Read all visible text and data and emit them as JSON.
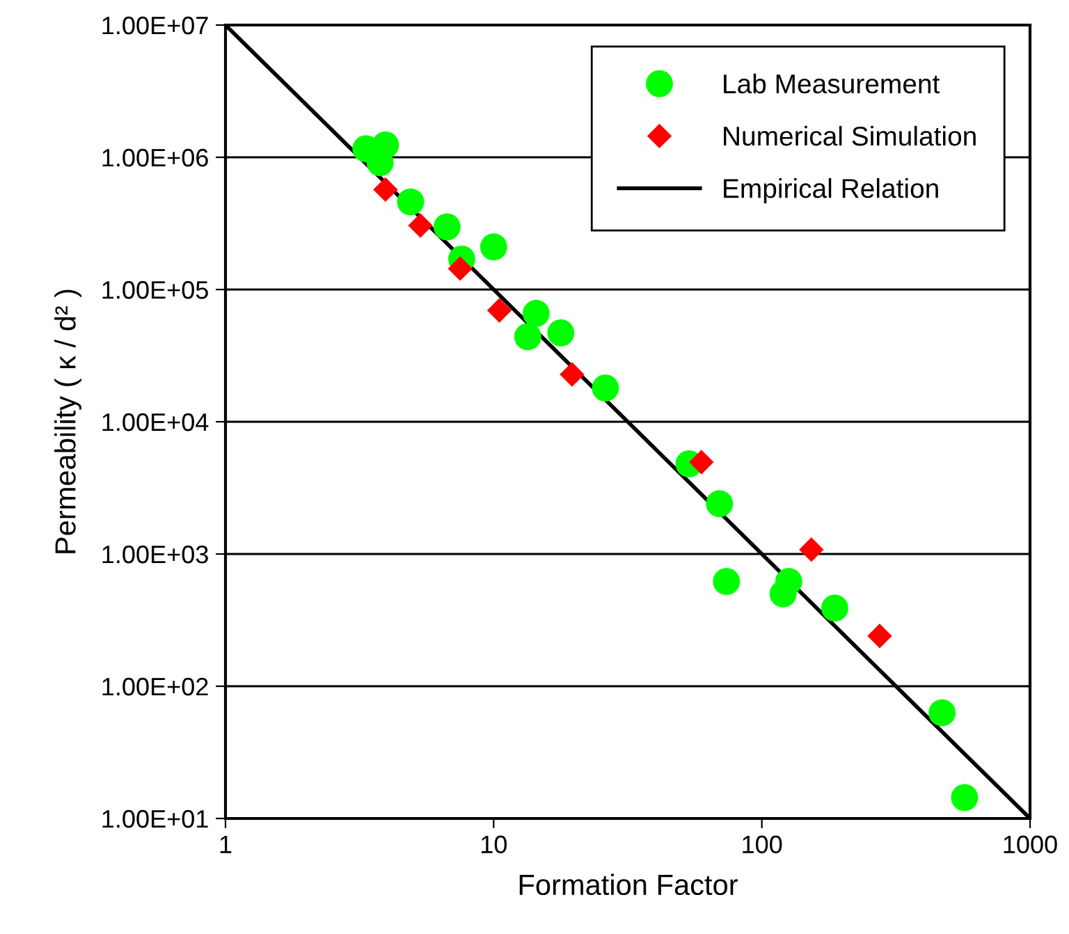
{
  "chart_data": {
    "type": "scatter",
    "xlabel": "Formation Factor",
    "ylabel": "Permeability ( κ / d² )",
    "log": "xy",
    "xlim": [
      1,
      1000
    ],
    "xticks": [
      1,
      10,
      100,
      1000
    ],
    "ylim": [
      10,
      10000000
    ],
    "yticks": [
      {
        "value": 10,
        "label": "1.00E+01"
      },
      {
        "value": 100,
        "label": "1.00E+02"
      },
      {
        "value": 1000,
        "label": "1.00E+03"
      },
      {
        "value": 10000,
        "label": "1.00E+04"
      },
      {
        "value": 100000,
        "label": "1.00E+05"
      },
      {
        "value": 1000000,
        "label": "1.00E+06"
      },
      {
        "value": 10000000,
        "label": "1.00E+07"
      }
    ],
    "grid": "y",
    "legend": "top right",
    "series": [
      {
        "name": "Lab Measurement",
        "marker": "circle",
        "color": "#00ff00",
        "x": [
          3.34,
          3.95,
          3.77,
          4.9,
          6.7,
          7.6,
          10.0,
          14.4,
          13.4,
          17.8,
          26.1,
          53.5,
          69.5,
          73.8,
          126,
          120,
          187,
          470,
          570
        ],
        "values": [
          1160000,
          1240000,
          910000,
          460000,
          298000,
          170000,
          210000,
          66000,
          44000,
          47000,
          18000,
          4800,
          2400,
          620,
          620,
          500,
          390,
          63,
          14.4
        ]
      },
      {
        "name": "Numerical Simulation",
        "marker": "diamond",
        "color": "#ff0000",
        "x": [
          3.95,
          5.33,
          7.5,
          10.5,
          19.6,
          59.5,
          153,
          275
        ],
        "values": [
          570000,
          305000,
          144000,
          69500,
          22800,
          4950,
          1080,
          240
        ]
      },
      {
        "name": "Empirical Relation",
        "type": "line",
        "marker": "none",
        "line_style": "solid",
        "color": "#000000",
        "x": [
          1,
          1000
        ],
        "values": [
          10000000,
          10
        ]
      }
    ]
  }
}
